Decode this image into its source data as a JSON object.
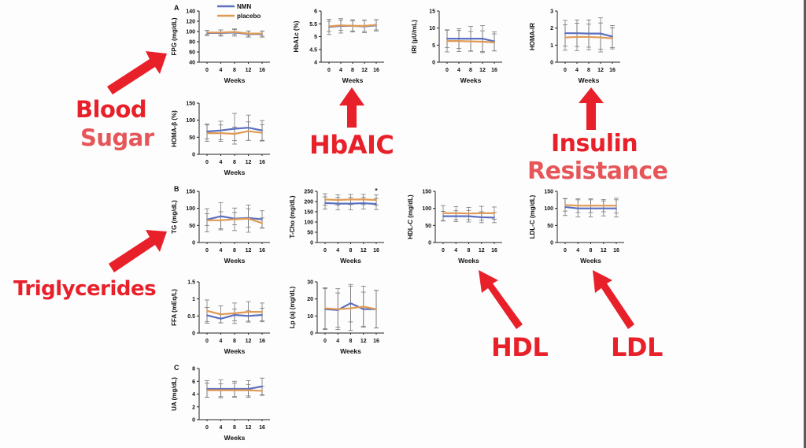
{
  "colors": {
    "nmn": "#5b6fbf",
    "placebo": "#e09a54",
    "annotation": "#e8202a",
    "annotation_light": "#e65659",
    "error_bar": "#777777"
  },
  "legend": {
    "nmn": "NMN",
    "placebo": "placebo"
  },
  "panel_letters": {
    "a": "A",
    "b": "B",
    "c": "C"
  },
  "annotations": {
    "blood": "Blood",
    "sugar": "Sugar",
    "hbaic": "HbAIC",
    "insulin": "Insulin",
    "resistance": "Resistance",
    "triglycerides": "Triglycerides",
    "hdl": "HDL",
    "ldl": "LDL"
  },
  "chart_data": [
    {
      "id": "fpg",
      "type": "line",
      "group": "A",
      "ylabel": "FPG (mg/dL)",
      "xlabel": "Weeks",
      "x": [
        0,
        4,
        8,
        12,
        16
      ],
      "ylim": [
        40,
        140
      ],
      "yticks": [
        40,
        60,
        80,
        100,
        120,
        140
      ],
      "series": [
        {
          "name": "NMN",
          "values": [
            97,
            97,
            98,
            95,
            95
          ],
          "err": [
            5,
            6,
            7,
            6,
            6
          ]
        },
        {
          "name": "placebo",
          "values": [
            98,
            98,
            99,
            96,
            96
          ],
          "err": [
            4,
            5,
            5,
            5,
            5
          ]
        }
      ]
    },
    {
      "id": "hba1c",
      "type": "line",
      "group": "A",
      "ylabel": "HbA1c (%)",
      "xlabel": "Weeks",
      "x": [
        0,
        4,
        8,
        12,
        16
      ],
      "ylim": [
        4,
        6
      ],
      "yticks": [
        4,
        4.5,
        5,
        5.5,
        6
      ],
      "series": [
        {
          "name": "NMN",
          "values": [
            5.38,
            5.42,
            5.42,
            5.4,
            5.44
          ],
          "err": [
            0.3,
            0.28,
            0.24,
            0.25,
            0.22
          ]
        },
        {
          "name": "placebo",
          "values": [
            5.4,
            5.44,
            5.42,
            5.42,
            5.46
          ],
          "err": [
            0.2,
            0.2,
            0.2,
            0.22,
            0.2
          ]
        }
      ]
    },
    {
      "id": "iri",
      "type": "line",
      "group": "A",
      "ylabel": "IRI (μU/mL)",
      "xlabel": "Weeks",
      "x": [
        0,
        4,
        8,
        12,
        16
      ],
      "ylim": [
        0,
        15
      ],
      "yticks": [
        0,
        5,
        10,
        15
      ],
      "series": [
        {
          "name": "NMN",
          "values": [
            6.9,
            6.9,
            6.9,
            6.9,
            6.1
          ],
          "err": [
            2.6,
            2.9,
            3.6,
            3.8,
            2.8
          ]
        },
        {
          "name": "placebo",
          "values": [
            6.2,
            6.2,
            6.1,
            6.0,
            5.8
          ],
          "err": [
            3.2,
            3.1,
            2.9,
            3.2,
            2.5
          ]
        }
      ]
    },
    {
      "id": "homa-ir",
      "type": "line",
      "group": "A",
      "ylabel": "HOMA-IR",
      "xlabel": "Weeks",
      "x": [
        0,
        4,
        8,
        12,
        16
      ],
      "ylim": [
        0,
        3
      ],
      "yticks": [
        0,
        1,
        2,
        3
      ],
      "series": [
        {
          "name": "NMN",
          "values": [
            1.7,
            1.7,
            1.68,
            1.68,
            1.5
          ],
          "err": [
            0.75,
            0.78,
            0.8,
            0.92,
            0.65
          ]
        },
        {
          "name": "placebo",
          "values": [
            1.45,
            1.48,
            1.48,
            1.45,
            1.4
          ],
          "err": [
            0.75,
            0.8,
            0.75,
            0.85,
            0.62
          ]
        }
      ]
    },
    {
      "id": "homa-beta",
      "type": "line",
      "group": "A",
      "ylabel": "HOMA-β (%)",
      "xlabel": "Weeks",
      "x": [
        0,
        4,
        8,
        12,
        16
      ],
      "ylim": [
        0,
        150
      ],
      "yticks": [
        0,
        50,
        100,
        150
      ],
      "series": [
        {
          "name": "NMN",
          "values": [
            67,
            70,
            75,
            78,
            70
          ],
          "err": [
            22,
            27,
            45,
            37,
            29
          ]
        },
        {
          "name": "placebo",
          "values": [
            62,
            62,
            60,
            68,
            63
          ],
          "err": [
            24,
            24,
            20,
            27,
            24
          ]
        }
      ]
    },
    {
      "id": "tg",
      "type": "line",
      "group": "B",
      "ylabel": "TG (mg/dL)",
      "xlabel": "Weeks",
      "x": [
        0,
        4,
        8,
        12,
        16
      ],
      "ylim": [
        0,
        150
      ],
      "yticks": [
        0,
        50,
        100,
        150
      ],
      "series": [
        {
          "name": "NMN",
          "values": [
            67,
            77,
            70,
            72,
            68
          ],
          "err": [
            17,
            40,
            18,
            27,
            25
          ]
        },
        {
          "name": "placebo",
          "values": [
            65,
            65,
            68,
            70,
            57
          ],
          "err": [
            34,
            25,
            33,
            40,
            15
          ]
        }
      ]
    },
    {
      "id": "t-cho",
      "type": "line",
      "group": "B",
      "ylabel": "T-Cho (mg/dL)",
      "xlabel": "Weeks",
      "x": [
        0,
        4,
        8,
        12,
        16
      ],
      "ylim": [
        0,
        250
      ],
      "yticks": [
        0,
        50,
        100,
        150,
        200,
        250
      ],
      "significance": {
        "x": 16,
        "label": "*"
      },
      "series": [
        {
          "name": "NMN",
          "values": [
            193,
            190,
            190,
            192,
            188
          ],
          "err": [
            30,
            30,
            30,
            28,
            27
          ]
        },
        {
          "name": "placebo",
          "values": [
            210,
            208,
            210,
            210,
            208
          ],
          "err": [
            28,
            25,
            25,
            25,
            25
          ]
        }
      ]
    },
    {
      "id": "hdl-c",
      "type": "line",
      "group": "B",
      "ylabel": "HDL-C (mg/dL)",
      "xlabel": "Weeks",
      "x": [
        0,
        4,
        8,
        12,
        16
      ],
      "ylim": [
        0,
        150
      ],
      "yticks": [
        0,
        50,
        100,
        150
      ],
      "series": [
        {
          "name": "NMN",
          "values": [
            77,
            77,
            77,
            74,
            73
          ],
          "err": [
            14,
            16,
            17,
            16,
            15
          ]
        },
        {
          "name": "placebo",
          "values": [
            86,
            86,
            85,
            86,
            86
          ],
          "err": [
            22,
            19,
            18,
            20,
            18
          ]
        }
      ]
    },
    {
      "id": "ldl-c",
      "type": "line",
      "group": "B",
      "ylabel": "LDL-C (mg/dL)",
      "xlabel": "Weeks",
      "x": [
        0,
        4,
        8,
        12,
        16
      ],
      "ylim": [
        0,
        150
      ],
      "yticks": [
        0,
        50,
        100,
        150
      ],
      "series": [
        {
          "name": "NMN",
          "values": [
            104,
            100,
            100,
            100,
            100
          ],
          "err": [
            25,
            25,
            25,
            22,
            25
          ]
        },
        {
          "name": "placebo",
          "values": [
            110,
            108,
            108,
            108,
            108
          ],
          "err": [
            18,
            20,
            20,
            18,
            22
          ]
        }
      ]
    },
    {
      "id": "ffa",
      "type": "line",
      "group": "B",
      "ylabel": "FFA (mEq/L)",
      "xlabel": "Weeks",
      "x": [
        0,
        4,
        8,
        12,
        16
      ],
      "ylim": [
        0,
        1.5
      ],
      "yticks": [
        0,
        0.5,
        1,
        1.5
      ],
      "series": [
        {
          "name": "NMN",
          "values": [
            0.52,
            0.42,
            0.53,
            0.5,
            0.53
          ],
          "err": [
            0.23,
            0.12,
            0.17,
            0.15,
            0.2
          ]
        },
        {
          "name": "placebo",
          "values": [
            0.65,
            0.55,
            0.58,
            0.62,
            0.62
          ],
          "err": [
            0.32,
            0.25,
            0.3,
            0.3,
            0.26
          ]
        }
      ]
    },
    {
      "id": "lp-a",
      "type": "line",
      "group": "B",
      "ylabel": "Lp (a) (mg/dL)",
      "xlabel": "Weeks",
      "x": [
        0,
        4,
        8,
        12,
        16
      ],
      "ylim": [
        0,
        30
      ],
      "yticks": [
        0,
        10,
        20,
        30
      ],
      "series": [
        {
          "name": "NMN",
          "values": [
            14,
            13.5,
            17.5,
            14,
            14
          ],
          "err": [
            12,
            10,
            11,
            10,
            11
          ]
        },
        {
          "name": "placebo",
          "values": [
            14.5,
            14,
            14.5,
            15.5,
            14
          ],
          "err": [
            12,
            12,
            13,
            12,
            11
          ]
        }
      ]
    },
    {
      "id": "ua",
      "type": "line",
      "group": "C",
      "ylabel": "UA (mg/dL)",
      "xlabel": "Weeks",
      "x": [
        0,
        4,
        8,
        12,
        16
      ],
      "ylim": [
        0,
        8
      ],
      "yticks": [
        0,
        2,
        4,
        6,
        8
      ],
      "series": [
        {
          "name": "NMN",
          "values": [
            4.8,
            4.8,
            4.8,
            4.8,
            5.2
          ],
          "err": [
            1.3,
            1.4,
            1.2,
            1.3,
            1.3
          ]
        },
        {
          "name": "placebo",
          "values": [
            4.6,
            4.6,
            4.6,
            4.6,
            4.5
          ],
          "err": [
            1.1,
            1.0,
            1.1,
            0.9,
            0.7
          ]
        }
      ]
    }
  ]
}
